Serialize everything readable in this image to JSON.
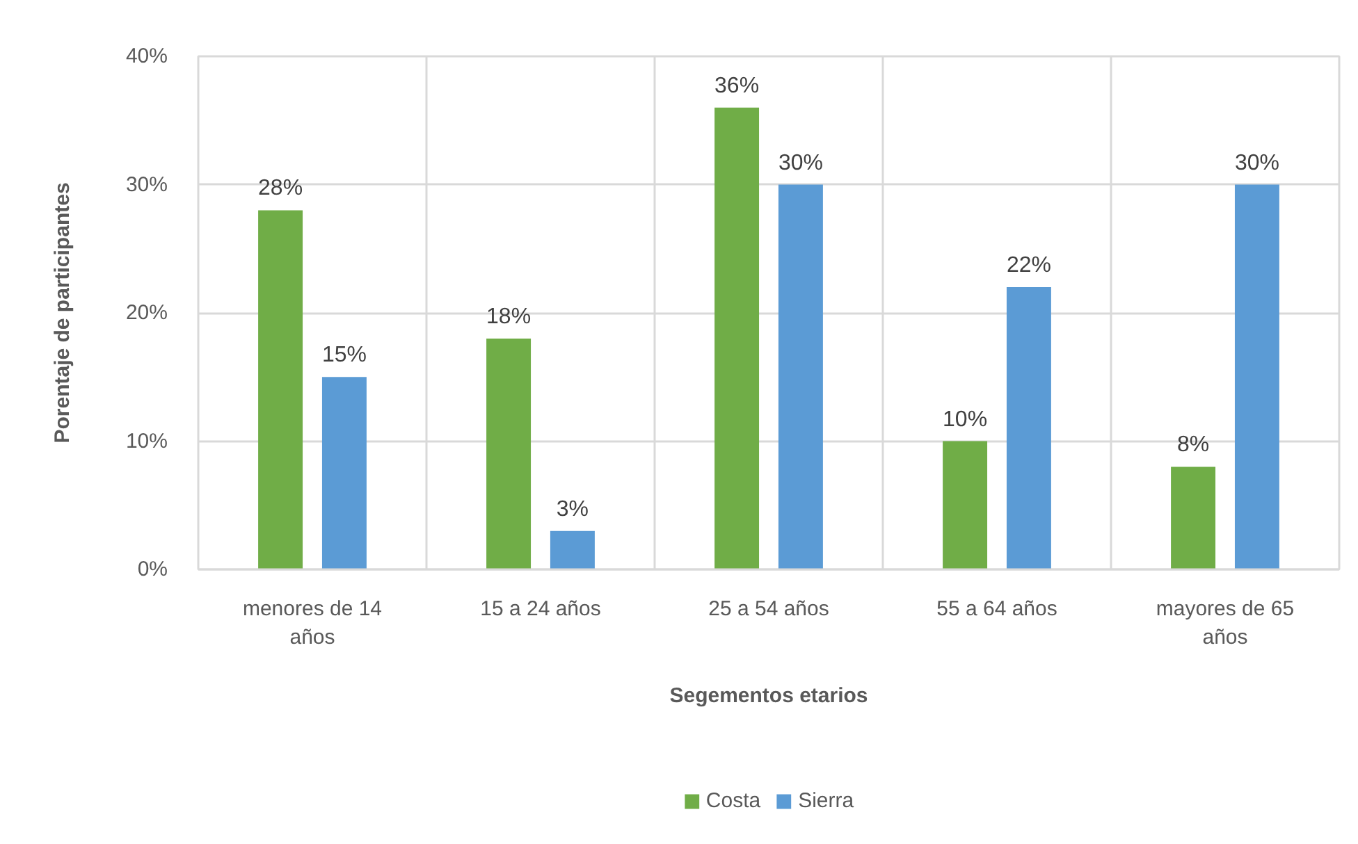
{
  "chart_data": {
    "type": "bar",
    "xlabel": "Segementos etarios",
    "ylabel": "Porentaje de participantes",
    "categories": [
      "menores de 14 años",
      "15 a 24 años",
      "25 a 54 años",
      "55 a 64 años",
      "mayores de 65 años"
    ],
    "series": [
      {
        "name": "Costa",
        "color": "#70ad47",
        "values": [
          28,
          18,
          36,
          10,
          8
        ],
        "value_labels": [
          "28%",
          "18%",
          "36%",
          "10%",
          "8%"
        ]
      },
      {
        "name": "Sierra",
        "color": "#5b9bd5",
        "values": [
          15,
          3,
          30,
          22,
          30
        ],
        "value_labels": [
          "15%",
          "3%",
          "30%",
          "22%",
          "30%"
        ]
      }
    ],
    "ylim": [
      0,
      40
    ],
    "yticks": [
      {
        "value": 0,
        "label": "0%"
      },
      {
        "value": 10,
        "label": "10%"
      },
      {
        "value": 20,
        "label": "20%"
      },
      {
        "value": 30,
        "label": "30%"
      },
      {
        "value": 40,
        "label": "40%"
      }
    ],
    "grid": true,
    "legend": "bottom"
  }
}
